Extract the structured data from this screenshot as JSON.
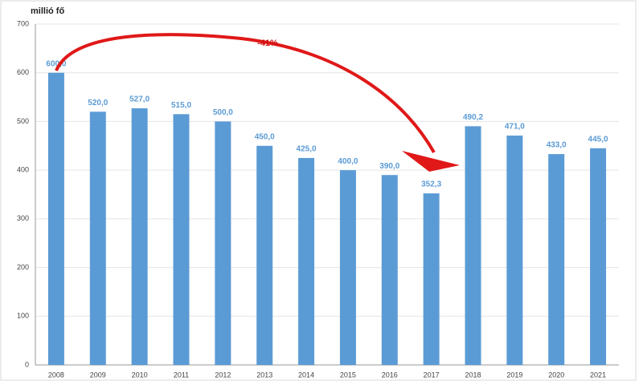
{
  "chart_data": {
    "type": "bar",
    "y_label": "millió fő",
    "annotation": "-41%",
    "categories": [
      "2008",
      "2009",
      "2010",
      "2011",
      "2012",
      "2013",
      "2014",
      "2015",
      "2016",
      "2017",
      "2018",
      "2019",
      "2020",
      "2021"
    ],
    "values": [
      600,
      520,
      527,
      515,
      500,
      450,
      425,
      400,
      390,
      352.3,
      490.2,
      471,
      433,
      445
    ],
    "value_labels": [
      "600,0",
      "520,0",
      "527,0",
      "515,0",
      "500,0",
      "450,0",
      "425,0",
      "400,0",
      "390,0",
      "352,3",
      "490,2",
      "471,0",
      "433,0",
      "445,0"
    ],
    "color": "#5b9bd5",
    "ylim": [
      0,
      700
    ],
    "yticks": [
      0,
      100,
      200,
      300,
      400,
      500,
      600,
      700
    ],
    "grid": true
  }
}
